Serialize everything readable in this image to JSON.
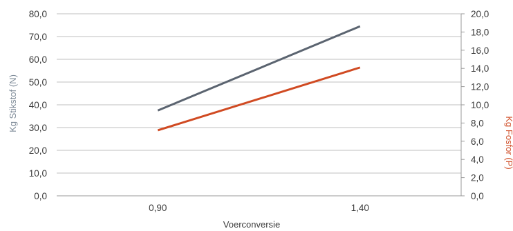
{
  "chart_data": {
    "type": "line",
    "xlabel": "Voerconversie",
    "categories": [
      "0,90",
      "1,40"
    ],
    "y_left": {
      "label": "Kg Stikstof (N)",
      "ylim": [
        0,
        80
      ],
      "ticks": [
        "0,0",
        "10,0",
        "20,0",
        "30,0",
        "40,0",
        "50,0",
        "60,0",
        "70,0",
        "80,0"
      ],
      "color": "#7f8c99"
    },
    "y_right": {
      "label": "Kg Fosfor (P)",
      "ylim": [
        0,
        20
      ],
      "ticks": [
        "0,0",
        "2,0",
        "4,0",
        "6,0",
        "8,0",
        "10,0",
        "12,0",
        "14,0",
        "16,0",
        "18,0",
        "20,0"
      ],
      "color": "#d0502a"
    },
    "grid": true,
    "series": [
      {
        "axis": "left",
        "values": [
          37.5,
          74.5
        ],
        "color": "#5b6470"
      },
      {
        "axis": "right",
        "values": [
          7.2,
          14.1
        ],
        "color": "#d04a22"
      }
    ]
  }
}
